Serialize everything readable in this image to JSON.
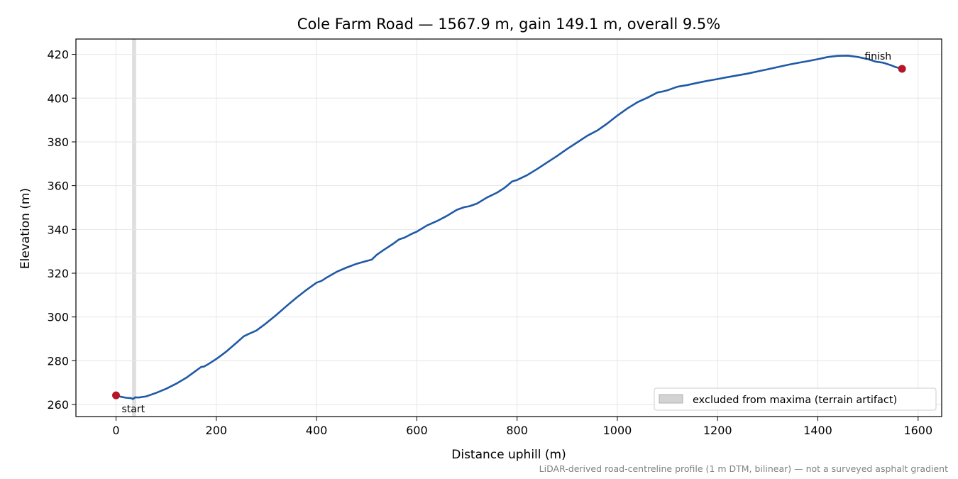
{
  "chart_data": {
    "type": "line",
    "title": "Cole Farm Road — 1567.9 m, gain 149.1 m, overall 9.5%",
    "xlabel": "Distance uphill (m)",
    "ylabel": "Elevation (m)",
    "xlim": [
      -80,
      1647
    ],
    "ylim": [
      254.5,
      427
    ],
    "x_ticks": [
      0,
      200,
      400,
      600,
      800,
      1000,
      1200,
      1400,
      1600
    ],
    "y_ticks": [
      260,
      280,
      300,
      320,
      340,
      360,
      380,
      400,
      420
    ],
    "grid": true,
    "legend_position": "lower-right",
    "footnote": "LiDAR-derived road-centreline profile (1 m DTM, bilinear) — not a surveyed asphalt gradient",
    "colors": {
      "line": "#1f5aa6",
      "marker": "#b5172a",
      "excluded": "#d3d3d3",
      "grid": "#e6e6e6"
    },
    "excluded_region": {
      "x0": 32,
      "x1": 40,
      "label": "excluded from maxima (terrain artifact)"
    },
    "annotations": [
      {
        "text": "start",
        "x": 0,
        "y": 264.2,
        "align": "below-right"
      },
      {
        "text": "finish",
        "x": 1567.9,
        "y": 413.4,
        "align": "above-left"
      }
    ],
    "endpoints": [
      {
        "x": 0,
        "y": 264.2
      },
      {
        "x": 1567.9,
        "y": 413.4
      }
    ],
    "series": [
      {
        "x": [
          0,
          10,
          20,
          30,
          34,
          38,
          45,
          60,
          80,
          100,
          120,
          140,
          160,
          170,
          175,
          185,
          200,
          220,
          240,
          255,
          265,
          280,
          300,
          320,
          340,
          360,
          380,
          400,
          410,
          420,
          440,
          460,
          480,
          500,
          510,
          520,
          535,
          550,
          565,
          575,
          590,
          600,
          620,
          640,
          660,
          680,
          695,
          705,
          720,
          740,
          760,
          775,
          790,
          800,
          820,
          840,
          860,
          880,
          900,
          920,
          940,
          960,
          980,
          1000,
          1020,
          1040,
          1060,
          1080,
          1090,
          1100,
          1120,
          1140,
          1160,
          1180,
          1200,
          1220,
          1240,
          1260,
          1280,
          1300,
          1320,
          1340,
          1360,
          1380,
          1400,
          1420,
          1440,
          1460,
          1480,
          1500,
          1515,
          1530,
          1545,
          1555,
          1567.9
        ],
        "y": [
          264.2,
          263.5,
          263.1,
          262.9,
          262.5,
          263.3,
          263.2,
          263.7,
          265.3,
          267.2,
          269.5,
          272.2,
          275.5,
          277.2,
          277.3,
          278.6,
          280.8,
          284.2,
          288.2,
          291.2,
          292.3,
          293.8,
          297.2,
          301.0,
          305.0,
          308.8,
          312.4,
          315.7,
          316.5,
          318.0,
          320.6,
          322.6,
          324.3,
          325.6,
          326.2,
          328.4,
          330.8,
          333.0,
          335.5,
          336.2,
          338.0,
          339.0,
          341.8,
          343.8,
          346.2,
          349.0,
          350.2,
          350.6,
          351.8,
          354.6,
          356.8,
          359.0,
          361.9,
          362.6,
          364.8,
          367.6,
          370.6,
          373.6,
          376.8,
          379.8,
          382.8,
          385.2,
          388.4,
          392.0,
          395.3,
          398.1,
          400.2,
          402.6,
          403.0,
          403.6,
          405.2,
          406.0,
          407.0,
          407.9,
          408.7,
          409.6,
          410.4,
          411.2,
          412.2,
          413.2,
          414.2,
          415.2,
          416.1,
          416.9,
          417.8,
          418.8,
          419.3,
          419.4,
          418.8,
          417.8,
          416.7,
          416.2,
          415.1,
          414.2,
          413.4
        ]
      }
    ]
  }
}
